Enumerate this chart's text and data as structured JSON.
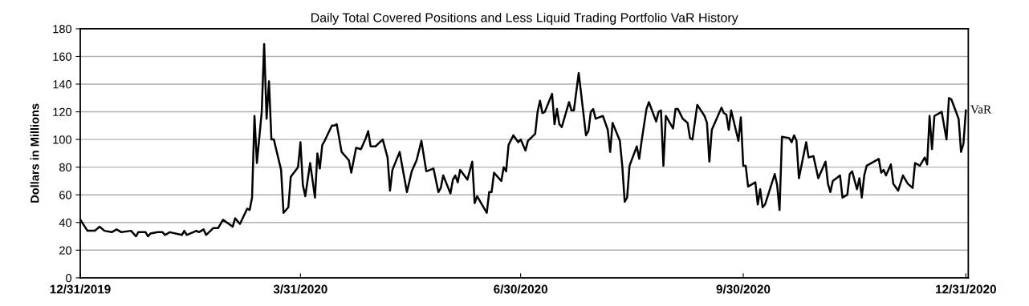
{
  "chart_data": {
    "type": "line",
    "title": "Daily Total Covered Positions and Less Liquid Trading Portfolio VaR History",
    "ylabel": "Dollars in Millions",
    "x": [
      "2019-12-31",
      "2020-01-03",
      "2020-01-06",
      "2020-01-08",
      "2020-01-10",
      "2020-01-13",
      "2020-01-15",
      "2020-01-17",
      "2020-01-21",
      "2020-01-23",
      "2020-01-24",
      "2020-01-27",
      "2020-01-28",
      "2020-01-29",
      "2020-02-01",
      "2020-02-03",
      "2020-02-04",
      "2020-02-06",
      "2020-02-11",
      "2020-02-12",
      "2020-02-13",
      "2020-02-17",
      "2020-02-18",
      "2020-02-20",
      "2020-02-21",
      "2020-02-24",
      "2020-02-26",
      "2020-02-28",
      "2020-03-03",
      "2020-03-04",
      "2020-03-06",
      "2020-03-09",
      "2020-03-10",
      "2020-03-11",
      "2020-03-12",
      "2020-03-13",
      "2020-03-15",
      "2020-03-16",
      "2020-03-17",
      "2020-03-18",
      "2020-03-19",
      "2020-03-20",
      "2020-03-23",
      "2020-03-24",
      "2020-03-26",
      "2020-03-27",
      "2020-03-30",
      "2020-03-31",
      "2020-04-01",
      "2020-04-02",
      "2020-04-04",
      "2020-04-06",
      "2020-04-07",
      "2020-04-08",
      "2020-04-09",
      "2020-04-10",
      "2020-04-13",
      "2020-04-14",
      "2020-04-15",
      "2020-04-17",
      "2020-04-20",
      "2020-04-21",
      "2020-04-23",
      "2020-04-25",
      "2020-04-27",
      "2020-04-28",
      "2020-04-29",
      "2020-05-01",
      "2020-05-04",
      "2020-05-06",
      "2020-05-07",
      "2020-05-08",
      "2020-05-11",
      "2020-05-14",
      "2020-05-16",
      "2020-05-18",
      "2020-05-20",
      "2020-05-22",
      "2020-05-25",
      "2020-05-27",
      "2020-05-28",
      "2020-05-29",
      "2020-06-01",
      "2020-06-02",
      "2020-06-03",
      "2020-06-04",
      "2020-06-05",
      "2020-06-08",
      "2020-06-10",
      "2020-06-11",
      "2020-06-12",
      "2020-06-16",
      "2020-06-17",
      "2020-06-18",
      "2020-06-19",
      "2020-06-22",
      "2020-06-23",
      "2020-06-24",
      "2020-06-25",
      "2020-06-27",
      "2020-06-29",
      "2020-06-30",
      "2020-07-02",
      "2020-07-03",
      "2020-07-06",
      "2020-07-07",
      "2020-07-08",
      "2020-07-09",
      "2020-07-10",
      "2020-07-13",
      "2020-07-14",
      "2020-07-15",
      "2020-07-16",
      "2020-07-17",
      "2020-07-20",
      "2020-07-21",
      "2020-07-22",
      "2020-07-24",
      "2020-07-27",
      "2020-07-28",
      "2020-07-29",
      "2020-07-30",
      "2020-07-31",
      "2020-08-03",
      "2020-08-05",
      "2020-08-06",
      "2020-08-07",
      "2020-08-10",
      "2020-08-11",
      "2020-08-12",
      "2020-08-13",
      "2020-08-14",
      "2020-08-17",
      "2020-08-18",
      "2020-08-19",
      "2020-08-21",
      "2020-08-22",
      "2020-08-25",
      "2020-08-26",
      "2020-08-27",
      "2020-08-28",
      "2020-08-29",
      "2020-09-01",
      "2020-09-02",
      "2020-09-03",
      "2020-09-05",
      "2020-09-07",
      "2020-09-08",
      "2020-09-09",
      "2020-09-11",
      "2020-09-14",
      "2020-09-15",
      "2020-09-16",
      "2020-09-17",
      "2020-09-19",
      "2020-09-21",
      "2020-09-22",
      "2020-09-23",
      "2020-09-24",
      "2020-09-25",
      "2020-09-28",
      "2020-09-29",
      "2020-09-30",
      "2020-10-01",
      "2020-10-02",
      "2020-10-05",
      "2020-10-06",
      "2020-10-07",
      "2020-10-08",
      "2020-10-09",
      "2020-10-13",
      "2020-10-14",
      "2020-10-15",
      "2020-10-16",
      "2020-10-19",
      "2020-10-20",
      "2020-10-21",
      "2020-10-22",
      "2020-10-23",
      "2020-10-26",
      "2020-10-27",
      "2020-10-29",
      "2020-10-31",
      "2020-11-03",
      "2020-11-04",
      "2020-11-05",
      "2020-11-06",
      "2020-11-09",
      "2020-11-10",
      "2020-11-12",
      "2020-11-13",
      "2020-11-14",
      "2020-11-16",
      "2020-11-17",
      "2020-11-18",
      "2020-11-19",
      "2020-11-20",
      "2020-11-25",
      "2020-11-26",
      "2020-11-27",
      "2020-11-28",
      "2020-11-30",
      "2020-12-01",
      "2020-12-03",
      "2020-12-05",
      "2020-12-07",
      "2020-12-09",
      "2020-12-10",
      "2020-12-12",
      "2020-12-14",
      "2020-12-15",
      "2020-12-16",
      "2020-12-17",
      "2020-12-18",
      "2020-12-21",
      "2020-12-23",
      "2020-12-24",
      "2020-12-25",
      "2020-12-28",
      "2020-12-29",
      "2020-12-30",
      "2020-12-31"
    ],
    "series": [
      {
        "name": "VaR",
        "color": "#000000",
        "values": [
          42,
          34,
          34,
          37,
          34,
          33,
          35,
          33,
          34,
          30,
          33,
          33,
          30,
          32,
          33,
          33,
          31,
          33,
          31,
          34,
          31,
          34,
          33,
          35,
          31,
          36,
          36,
          42,
          37,
          43,
          39,
          50,
          49,
          58,
          117,
          83,
          120,
          169,
          115,
          142,
          100,
          100,
          78,
          47,
          51,
          73,
          80,
          98,
          67,
          59,
          83,
          58,
          90,
          79,
          96,
          99,
          110,
          110,
          111,
          91,
          85,
          76,
          94,
          93,
          101,
          106,
          95,
          95,
          100,
          87,
          63,
          78,
          91,
          62,
          77,
          85,
          99,
          77,
          79,
          62,
          65,
          74,
          61,
          71,
          74,
          69,
          78,
          71,
          84,
          54,
          59,
          47,
          62,
          62,
          76,
          70,
          80,
          77,
          96,
          103,
          98,
          100,
          92,
          99,
          104,
          120,
          128,
          119,
          120,
          133,
          111,
          122,
          111,
          109,
          127,
          121,
          121,
          148,
          103,
          106,
          120,
          122,
          115,
          117,
          107,
          91,
          112,
          99,
          81,
          55,
          58,
          81,
          95,
          86,
          99,
          122,
          127,
          113,
          120,
          121,
          81,
          117,
          108,
          122,
          122,
          115,
          112,
          101,
          100,
          125,
          117,
          112,
          84,
          107,
          115,
          123,
          119,
          118,
          107,
          121,
          99,
          116,
          81,
          81,
          66,
          69,
          53,
          64,
          51,
          53,
          75,
          67,
          49,
          102,
          101,
          98,
          103,
          99,
          72,
          98,
          87,
          88,
          72,
          84,
          68,
          62,
          70,
          74,
          58,
          60,
          75,
          77,
          64,
          72,
          58,
          74,
          81,
          86,
          76,
          78,
          74,
          82,
          68,
          63,
          74,
          68,
          65,
          83,
          81,
          87,
          82,
          117,
          93,
          117,
          120,
          100,
          130,
          129,
          115,
          91,
          97,
          121
        ]
      }
    ],
    "xlim": [
      "2019-12-31",
      "2021-01-01"
    ],
    "xticks": [
      {
        "value": "2019-12-31",
        "label": "12/31/2019"
      },
      {
        "value": "2020-03-31",
        "label": "3/31/2020"
      },
      {
        "value": "2020-06-30",
        "label": "6/30/2020"
      },
      {
        "value": "2020-09-30",
        "label": "9/30/2020"
      },
      {
        "value": "2020-12-31",
        "label": "12/31/2020"
      }
    ],
    "ylim": [
      0,
      180
    ],
    "yticks": [
      0,
      20,
      40,
      60,
      80,
      100,
      120,
      140,
      160,
      180
    ],
    "grid": "y",
    "legend": false,
    "marker": "none",
    "line_style": "solid"
  }
}
